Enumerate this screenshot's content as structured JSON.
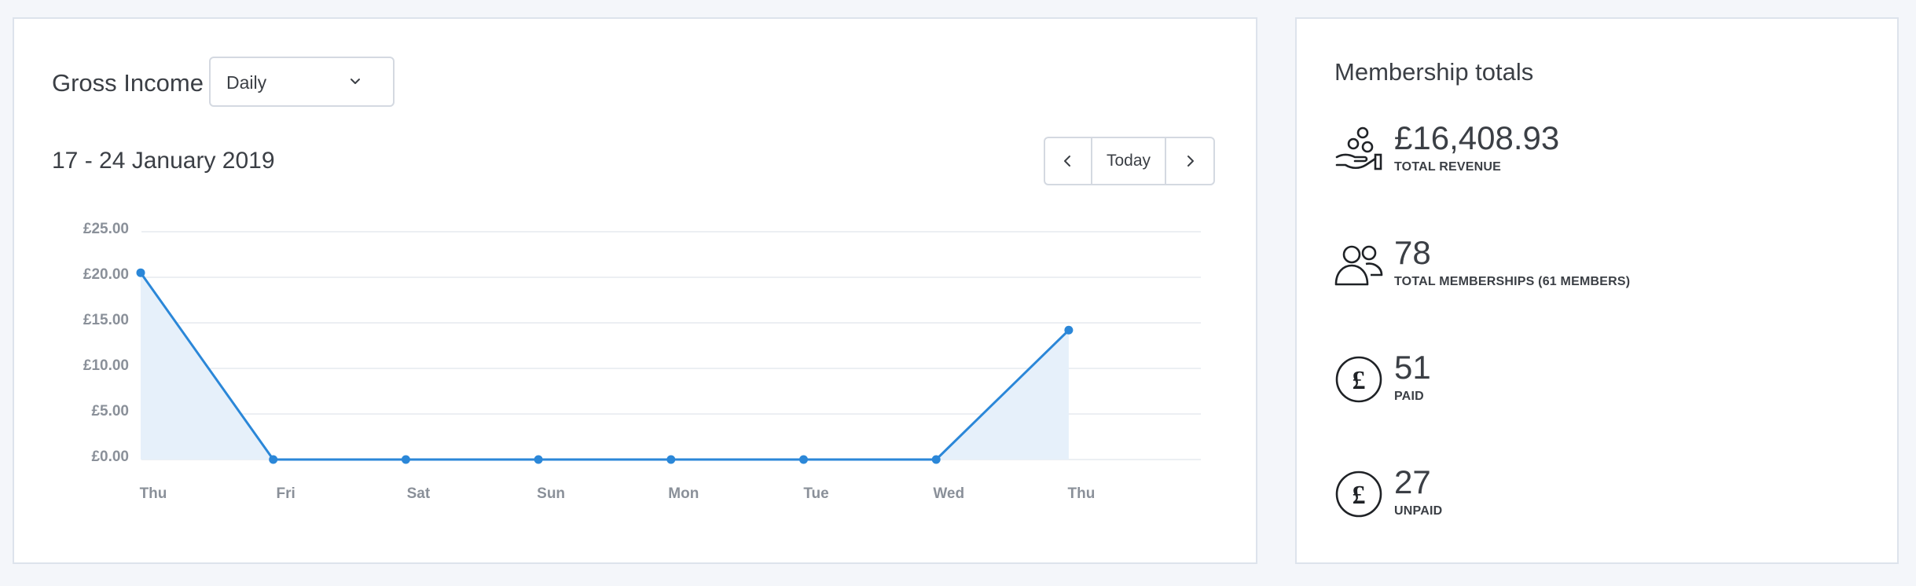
{
  "gross_income": {
    "title": "Gross Income",
    "period_select": {
      "value": "Daily"
    },
    "date_range": "17 - 24 January 2019",
    "nav": {
      "today_label": "Today"
    }
  },
  "chart_data": {
    "type": "area",
    "categories": [
      "Thu",
      "Fri",
      "Sat",
      "Sun",
      "Mon",
      "Tue",
      "Wed",
      "Thu"
    ],
    "values": [
      20.5,
      0,
      0,
      0,
      0,
      0,
      0,
      14.2
    ],
    "y_ticks": [
      "£0.00",
      "£5.00",
      "£10.00",
      "£15.00",
      "£20.00",
      "£25.00"
    ],
    "ylim": [
      0,
      25
    ],
    "grid": true,
    "colors": {
      "line": "#2b87d8",
      "fill": "#e6f0fa",
      "grid": "#eceff3"
    }
  },
  "membership": {
    "title": "Membership totals",
    "stats": [
      {
        "icon": "hand-coins-icon",
        "value": "£16,408.93",
        "label": "TOTAL REVENUE"
      },
      {
        "icon": "users-icon",
        "value": "78",
        "label": "TOTAL MEMBERSHIPS (61 MEMBERS)"
      },
      {
        "icon": "pound-circle-icon",
        "value": "51",
        "label": "PAID"
      },
      {
        "icon": "pound-circle-icon",
        "value": "27",
        "label": "UNPAID"
      }
    ]
  }
}
